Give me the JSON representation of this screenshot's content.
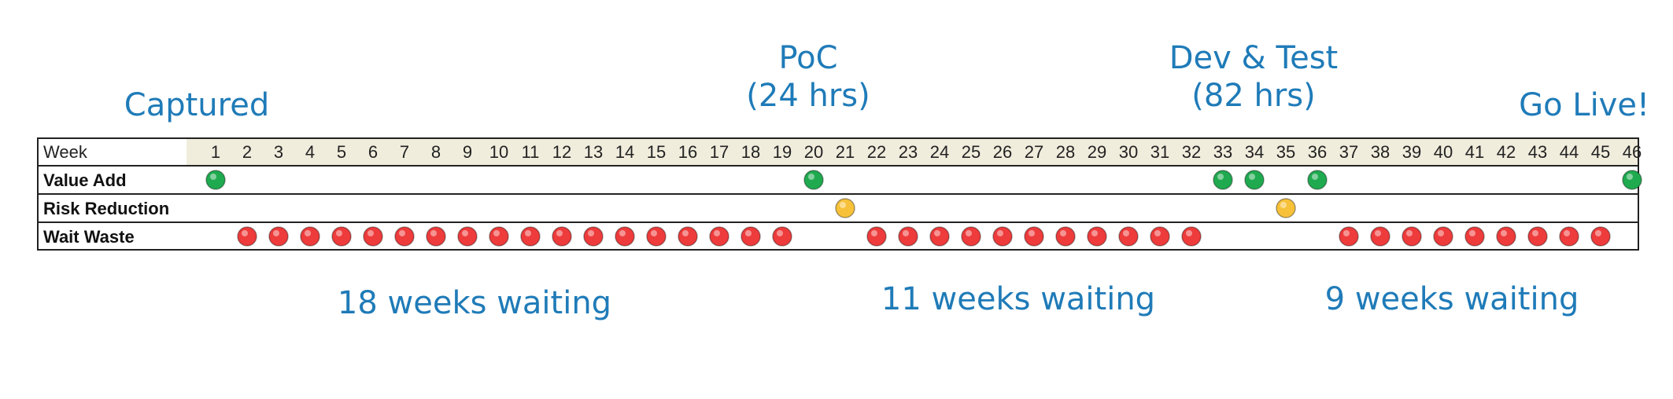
{
  "milestones": [
    {
      "id": "captured",
      "lines": [
        "Captured"
      ]
    },
    {
      "id": "poc",
      "lines": [
        "PoC",
        "(24 hrs)"
      ]
    },
    {
      "id": "dev-test",
      "lines": [
        "Dev & Test",
        "(82 hrs)"
      ]
    },
    {
      "id": "go-live",
      "lines": [
        "Go Live!"
      ]
    }
  ],
  "waiting_labels": [
    "18 weeks waiting",
    "11 weeks waiting",
    "9 weeks waiting"
  ],
  "table": {
    "header_label": "Week",
    "weeks": [
      1,
      2,
      3,
      4,
      5,
      6,
      7,
      8,
      9,
      10,
      11,
      12,
      13,
      14,
      15,
      16,
      17,
      18,
      19,
      20,
      21,
      22,
      23,
      24,
      25,
      26,
      27,
      28,
      29,
      30,
      31,
      32,
      33,
      34,
      35,
      36,
      37,
      38,
      39,
      40,
      41,
      42,
      43,
      44,
      45,
      46
    ],
    "rows": [
      {
        "label": "Value Add",
        "color": "#1faa4f",
        "weeks": [
          1,
          20,
          33,
          34,
          36,
          46
        ]
      },
      {
        "label": "Risk Reduction",
        "color": "#f7c23a",
        "weeks": [
          21,
          35
        ]
      },
      {
        "label": "Wait Waste",
        "color": "#ee3b3b",
        "weeks": [
          2,
          3,
          4,
          5,
          6,
          7,
          8,
          9,
          10,
          11,
          12,
          13,
          14,
          15,
          16,
          17,
          18,
          19,
          22,
          23,
          24,
          25,
          26,
          27,
          28,
          29,
          30,
          31,
          32,
          37,
          38,
          39,
          40,
          41,
          42,
          43,
          44,
          45
        ]
      }
    ]
  },
  "colors": {
    "label_blue": "#1f7bb8",
    "header_bg": "#f1eddd",
    "grid_line": "#222222"
  }
}
